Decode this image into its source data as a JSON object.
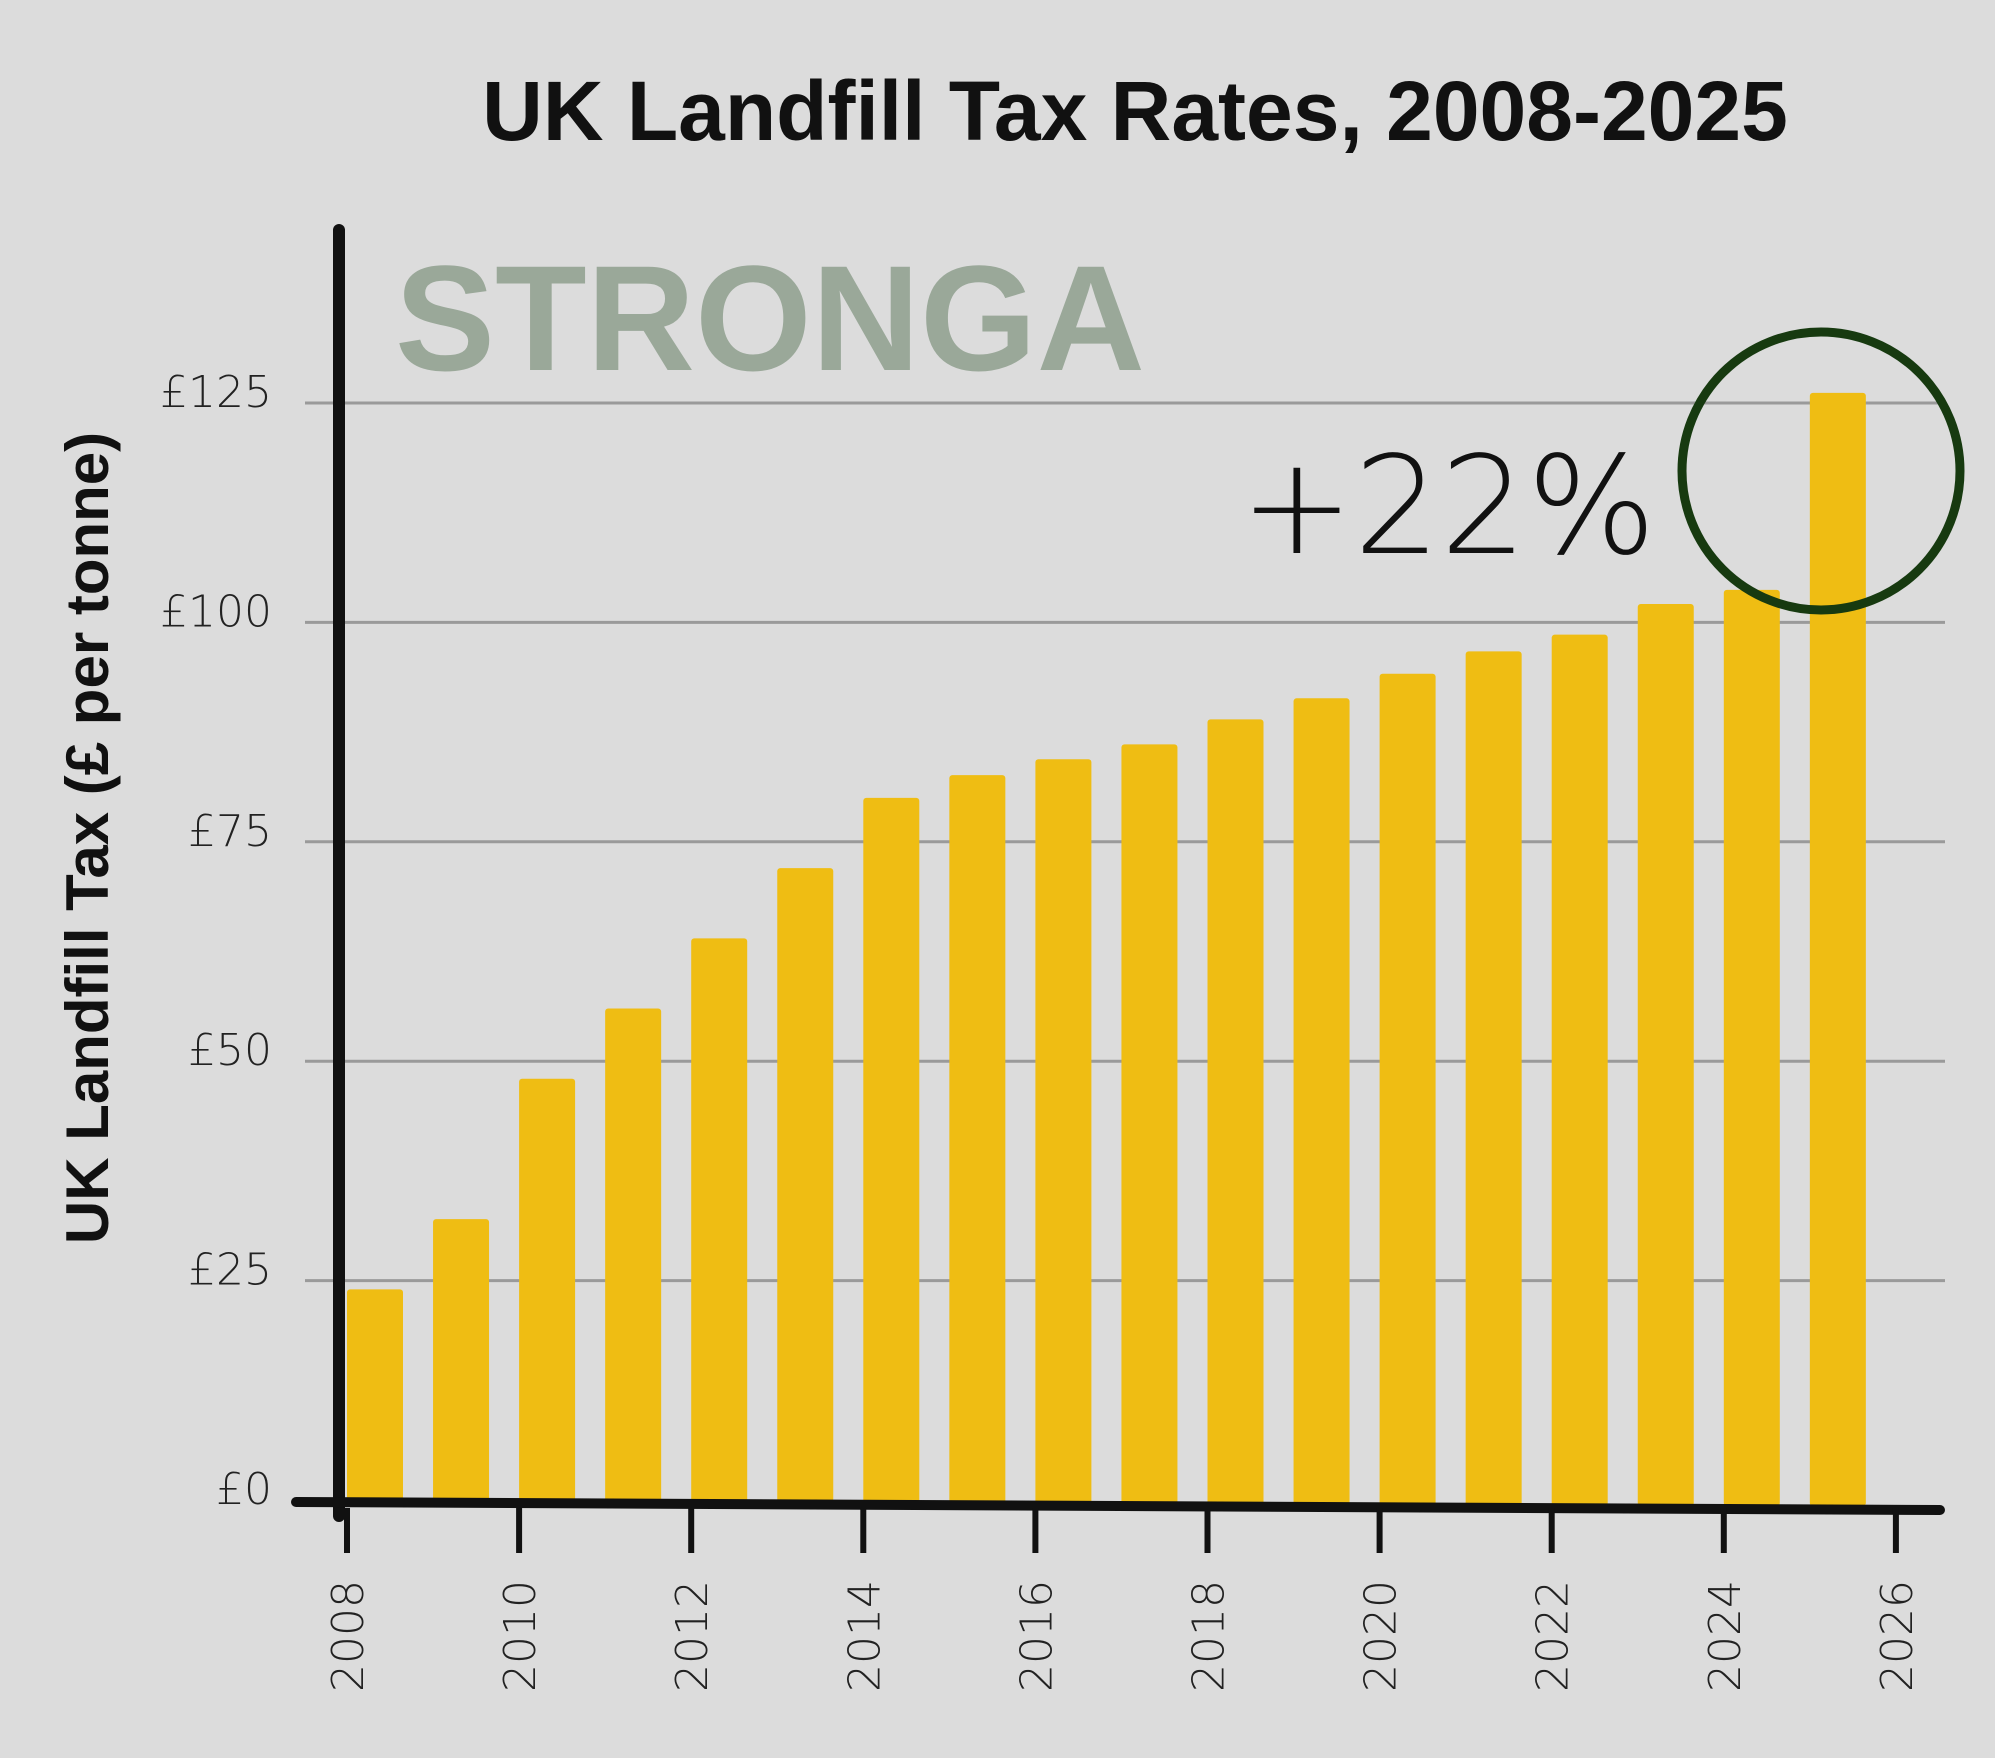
{
  "chart_data": {
    "type": "bar",
    "title": "UK Landfill Tax Rates, 2008-2025",
    "ylabel": "UK Landfill Tax (£ per tonne)",
    "xlabel": "",
    "x": [
      2008,
      2009,
      2010,
      2011,
      2012,
      2013,
      2014,
      2015,
      2016,
      2017,
      2018,
      2019,
      2020,
      2021,
      2022,
      2023,
      2024,
      2025
    ],
    "values": [
      24,
      32,
      48,
      56,
      64,
      72,
      80,
      82.6,
      84.4,
      86.1,
      88.95,
      91.35,
      94.15,
      96.7,
      98.6,
      102.1,
      103.7,
      126.15
    ],
    "xlim": [
      2008,
      2026
    ],
    "ylim": [
      0,
      125
    ],
    "xticks": [
      2008,
      2010,
      2012,
      2014,
      2016,
      2018,
      2020,
      2022,
      2024,
      2026
    ],
    "xtick_labels": [
      "2008",
      "2010",
      "2012",
      "2014",
      "2016",
      "2018",
      "2020",
      "2022",
      "2024",
      "2026"
    ],
    "yticks": [
      0,
      25,
      50,
      75,
      100,
      125
    ],
    "ytick_labels": [
      "£0",
      "£25",
      "£50",
      "£75",
      "£100",
      "£125"
    ],
    "grid": true,
    "bar_color": "#efbd13",
    "grid_color": "#9a9a9a",
    "axis_color": "#111111",
    "annotation": {
      "text": "+22%",
      "highlight_year": 2025,
      "highlight_color": "#173a10"
    },
    "watermark": "STRONGA",
    "watermark_color": "#9aa899",
    "background_color": "#dcdcdc"
  }
}
